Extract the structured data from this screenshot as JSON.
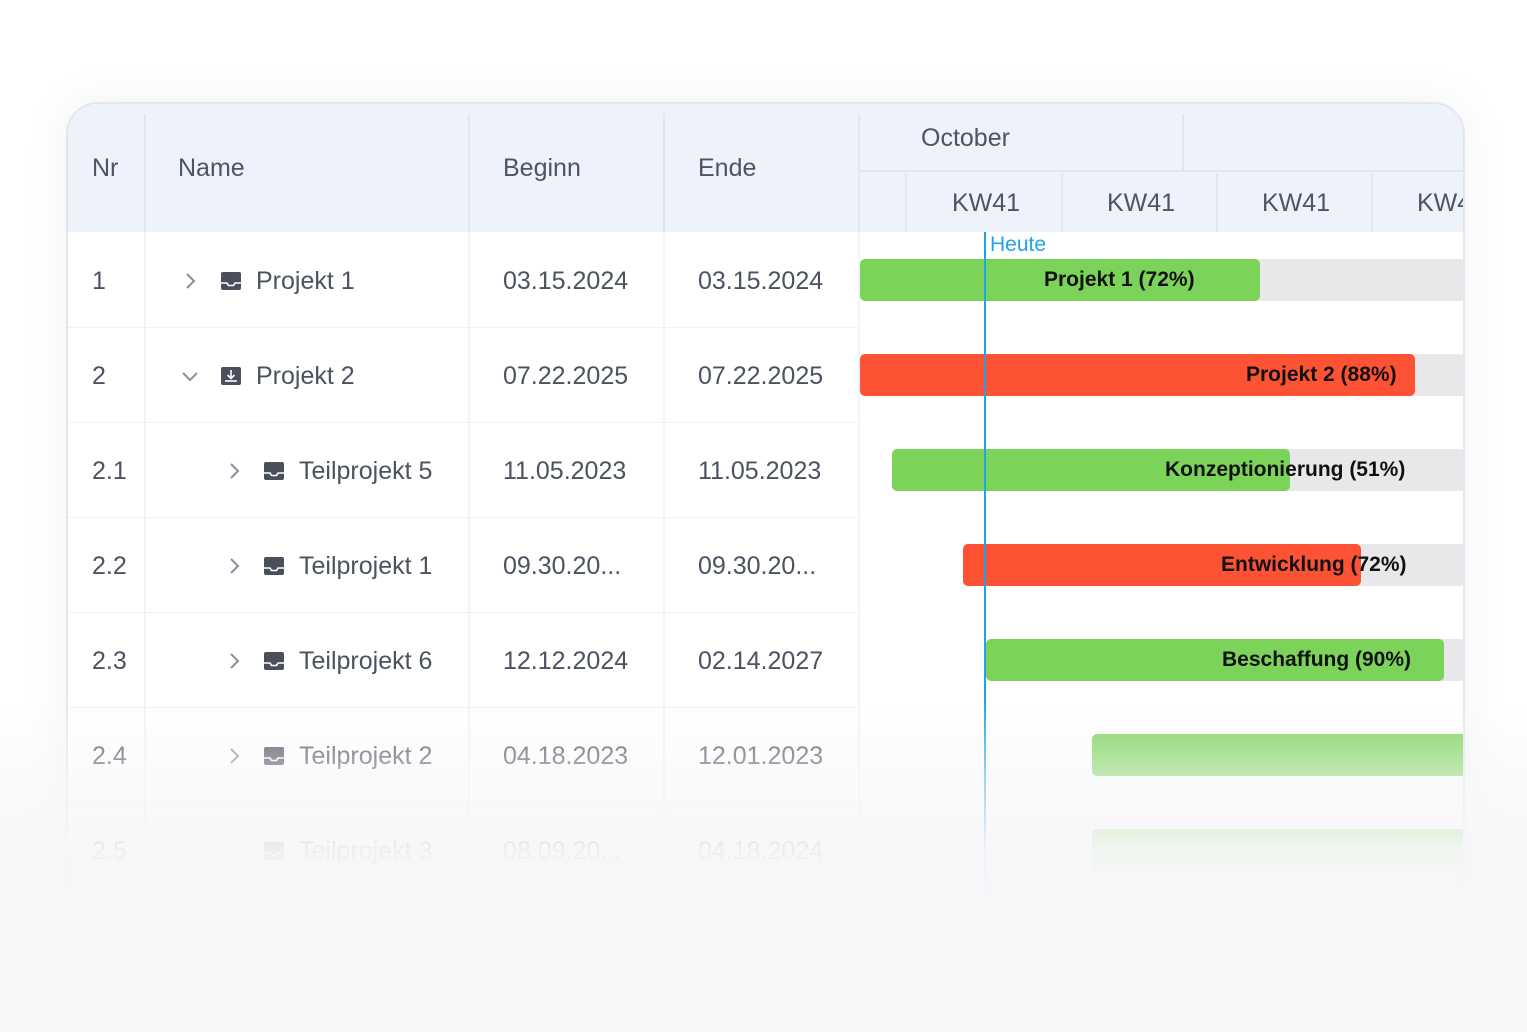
{
  "header": {
    "nr": "Nr",
    "name": "Name",
    "beginn": "Beginn",
    "ende": "Ende",
    "month": "October",
    "weeks": [
      "KW41",
      "KW41",
      "KW41",
      "KW4"
    ]
  },
  "today_label": "Heute",
  "rows": [
    {
      "nr": "1",
      "name": "Projekt 1",
      "beginn": "03.15.2024",
      "ende": "03.15.2024",
      "chevron": "chevron-right-icon",
      "icon": "inbox-icon",
      "bar_label": "Projekt 1 (72%)",
      "progress": 72,
      "status": "green"
    },
    {
      "nr": "2",
      "name": "Projekt 2",
      "beginn": "07.22.2025",
      "ende": "07.22.2025",
      "chevron": "chevron-down-icon",
      "icon": "download-icon",
      "bar_label": "Projekt 2 (88%)",
      "progress": 88,
      "status": "red"
    },
    {
      "nr": "2.1",
      "name": "Teilprojekt 5",
      "beginn": "11.05.2023",
      "ende": "11.05.2023",
      "chevron": "chevron-right-icon",
      "icon": "inbox-icon",
      "bar_label": "Konzeptionierung (51%)",
      "progress": 51,
      "status": "green"
    },
    {
      "nr": "2.2",
      "name": "Teilprojekt 1",
      "beginn": "09.30.20...",
      "ende": "09.30.20...",
      "chevron": "chevron-right-icon",
      "icon": "inbox-icon",
      "bar_label": "Entwicklung (72%)",
      "progress": 72,
      "status": "red"
    },
    {
      "nr": "2.3",
      "name": "Teilprojekt 6",
      "beginn": "12.12.2024",
      "ende": "02.14.2027",
      "chevron": "chevron-right-icon",
      "icon": "inbox-icon",
      "bar_label": "Beschaffung (90%)",
      "progress": 90,
      "status": "green"
    },
    {
      "nr": "2.4",
      "name": "Teilprojekt 2",
      "beginn": "04.18.2023",
      "ende": "12.01.2023",
      "chevron": "chevron-right-icon",
      "icon": "inbox-icon",
      "bar_label": "",
      "status": "green"
    },
    {
      "nr": "2.5",
      "name": "Teilprojekt 3",
      "beginn": "08.09.20...",
      "ende": "04.18.2024",
      "chevron": "",
      "icon": "inbox-icon",
      "bar_label": "",
      "status": "green"
    }
  ],
  "colors": {
    "green": "#7cd35a",
    "red": "#fe5234",
    "track": "#e8e8ea",
    "today": "#21a3ea",
    "header_bg": "#eef2fb"
  }
}
